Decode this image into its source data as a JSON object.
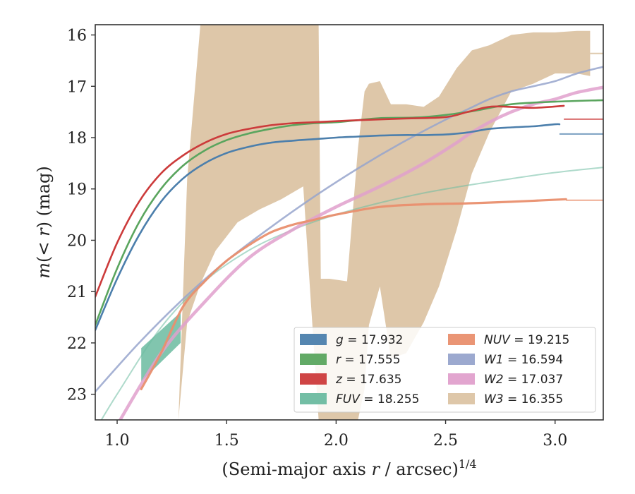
{
  "chart_data": {
    "type": "line",
    "xlabel": "(Semi-major axis r / arcsec)^1/4",
    "ylabel": "m(< r) (mag)",
    "xlim": [
      0.9,
      3.22
    ],
    "ylim": [
      23.5,
      15.8
    ],
    "xticks": [
      1.0,
      1.5,
      2.0,
      2.5,
      3.0
    ],
    "xtick_labels": [
      "1.0",
      "1.5",
      "2.0",
      "2.5",
      "3.0"
    ],
    "yticks": [
      16,
      17,
      18,
      19,
      20,
      21,
      22,
      23
    ],
    "ytick_labels": [
      "16",
      "17",
      "18",
      "19",
      "20",
      "21",
      "22",
      "23"
    ],
    "legend_placement": "lower-right",
    "series": [
      {
        "name": "g = 17.932",
        "color": "#4c7fac",
        "x": [
          0.9,
          1.0,
          1.1,
          1.2,
          1.3,
          1.4,
          1.5,
          1.6,
          1.7,
          1.8,
          1.9,
          2.0,
          2.1,
          2.2,
          2.3,
          2.4,
          2.5,
          2.6,
          2.7,
          2.8,
          2.9,
          3.0,
          3.02
        ],
        "y": [
          21.75,
          20.75,
          19.9,
          19.25,
          18.8,
          18.5,
          18.3,
          18.18,
          18.1,
          18.06,
          18.03,
          18.0,
          17.98,
          17.96,
          17.95,
          17.95,
          17.94,
          17.9,
          17.83,
          17.8,
          17.78,
          17.74,
          17.74
        ],
        "model_y": 17.93
      },
      {
        "name": "r = 17.555",
        "color": "#5aa55e",
        "x": [
          0.9,
          1.0,
          1.1,
          1.2,
          1.3,
          1.4,
          1.5,
          1.6,
          1.7,
          1.8,
          1.9,
          2.0,
          2.1,
          2.2,
          2.4,
          2.6,
          2.8,
          3.0,
          3.22
        ],
        "y": [
          21.65,
          20.55,
          19.65,
          19.0,
          18.55,
          18.25,
          18.05,
          17.92,
          17.83,
          17.76,
          17.72,
          17.7,
          17.66,
          17.62,
          17.6,
          17.5,
          17.35,
          17.3,
          17.27
        ],
        "model_y": 17.56
      },
      {
        "name": "z = 17.635",
        "color": "#cc3b3b",
        "x": [
          0.9,
          1.0,
          1.1,
          1.2,
          1.3,
          1.4,
          1.5,
          1.6,
          1.7,
          1.8,
          1.9,
          2.0,
          2.1,
          2.3,
          2.5,
          2.6,
          2.7,
          2.8,
          2.9,
          3.04
        ],
        "y": [
          21.1,
          20.05,
          19.25,
          18.7,
          18.35,
          18.1,
          17.93,
          17.83,
          17.76,
          17.72,
          17.7,
          17.68,
          17.66,
          17.63,
          17.6,
          17.5,
          17.4,
          17.4,
          17.42,
          17.38
        ],
        "model_y": 17.64
      },
      {
        "name": "FUV = 18.255",
        "color": "#6bbba0",
        "x": [
          1.11,
          1.29
        ],
        "y_upper": [
          22.1,
          21.4
        ],
        "y_lower": [
          22.75,
          22.0
        ],
        "model_x": [
          0.9,
          1.0,
          1.2,
          1.4,
          1.6,
          1.8,
          2.0,
          2.2,
          2.4,
          2.6,
          2.8,
          3.0,
          3.22
        ],
        "model_y_curve": [
          23.7,
          23.0,
          21.7,
          20.8,
          20.2,
          19.8,
          19.5,
          19.27,
          19.08,
          18.93,
          18.8,
          18.68,
          18.58
        ]
      },
      {
        "name": "NUV = 19.215",
        "color": "#e98f6e",
        "x": [
          1.11,
          1.2,
          1.3,
          1.4,
          1.5,
          1.6,
          1.7,
          1.8,
          1.9,
          2.0,
          2.2,
          2.4,
          2.6,
          2.8,
          3.05
        ],
        "y": [
          22.9,
          22.2,
          21.3,
          20.8,
          20.4,
          20.1,
          19.85,
          19.7,
          19.6,
          19.5,
          19.35,
          19.3,
          19.28,
          19.25,
          19.2
        ],
        "model_y": 19.22
      },
      {
        "name": "W1 = 16.594",
        "color": "#97a4cc",
        "x": [
          0.9,
          1.1,
          1.3,
          1.5,
          1.7,
          1.9,
          2.1,
          2.3,
          2.5,
          2.6,
          2.7,
          2.8,
          2.9,
          3.0,
          3.1,
          3.22
        ],
        "y": [
          22.95,
          22.0,
          21.15,
          20.4,
          19.75,
          19.15,
          18.6,
          18.1,
          17.65,
          17.45,
          17.25,
          17.1,
          17.0,
          16.9,
          16.75,
          16.62
        ],
        "model_y": 16.59
      },
      {
        "name": "W2 = 17.037",
        "color": "#e0a0cc",
        "x": [
          1.0,
          1.2,
          1.4,
          1.6,
          1.8,
          2.0,
          2.2,
          2.4,
          2.55,
          2.6,
          2.7,
          2.8,
          2.9,
          3.0,
          3.1,
          3.22
        ],
        "y": [
          23.6,
          22.2,
          21.2,
          20.35,
          19.8,
          19.35,
          18.95,
          18.5,
          18.1,
          17.95,
          17.7,
          17.5,
          17.35,
          17.25,
          17.12,
          17.02
        ],
        "model_y": 17.04
      },
      {
        "name": "W3 = 16.355",
        "color": "#dcc4a4",
        "x": [
          1.28,
          1.32,
          1.38,
          1.45,
          1.55,
          1.65,
          1.75,
          1.85,
          1.92,
          1.93,
          1.97,
          2.05,
          2.1,
          2.13,
          2.15,
          2.2,
          2.25,
          2.32,
          2.4,
          2.47,
          2.55,
          2.62,
          2.7,
          2.8,
          2.9,
          3.0,
          3.1,
          3.16
        ],
        "y_upper": [
          23.5,
          18.8,
          15.8,
          15.8,
          15.8,
          15.8,
          15.8,
          15.8,
          15.8,
          20.75,
          20.75,
          20.8,
          18.2,
          17.1,
          16.95,
          16.9,
          17.35,
          17.35,
          17.4,
          17.2,
          16.65,
          16.3,
          16.2,
          16.0,
          15.95,
          15.95,
          15.92,
          15.92
        ],
        "y_lower": [
          23.5,
          21.6,
          20.85,
          20.2,
          19.65,
          19.4,
          19.2,
          18.95,
          23.5,
          23.5,
          23.5,
          23.5,
          23.5,
          22.9,
          21.65,
          20.9,
          22.3,
          22.2,
          21.6,
          20.9,
          19.8,
          18.7,
          17.9,
          17.1,
          16.95,
          16.75,
          16.75,
          16.8
        ],
        "model_y": 16.36
      }
    ],
    "legend": [
      {
        "label": "g = 17.932",
        "var": "g",
        "value": "17.932",
        "color": "#4c7fac"
      },
      {
        "label": "r = 17.555",
        "var": "r",
        "value": "17.555",
        "color": "#5aa55e"
      },
      {
        "label": "z = 17.635",
        "var": "z",
        "value": "17.635",
        "color": "#cc3b3b"
      },
      {
        "label": "FUV = 18.255",
        "var": "FUV",
        "value": "18.255",
        "color": "#6bbba0"
      },
      {
        "label": "NUV = 19.215",
        "var": "NUV",
        "value": "19.215",
        "color": "#e98f6e"
      },
      {
        "label": "W1 = 16.594",
        "var": "W1",
        "value": "16.594",
        "color": "#97a4cc"
      },
      {
        "label": "W2 = 17.037",
        "var": "W2",
        "value": "17.037",
        "color": "#e0a0cc"
      },
      {
        "label": "W3 = 16.355",
        "var": "W3",
        "value": "16.355",
        "color": "#dcc4a4"
      }
    ]
  }
}
